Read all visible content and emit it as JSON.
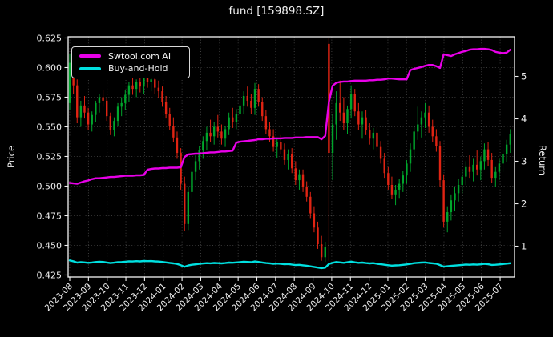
{
  "title": "fund [159898.SZ]",
  "chart_data": {
    "type": "candlestick",
    "title": "fund [159898.SZ]",
    "ylabel": "Price",
    "y2label": "Return",
    "grid": true,
    "legend_position": "upper-left",
    "price_ylim": [
      0.4233,
      0.626
    ],
    "return_ylim": [
      0.274,
      5.934
    ],
    "price_ticks": [
      0.625,
      0.6,
      0.575,
      0.55,
      0.525,
      0.5,
      0.475,
      0.45,
      0.425
    ],
    "return_ticks": [
      5,
      4,
      3,
      2,
      1
    ],
    "x_tick_labels": [
      "2023-08",
      "2023-09",
      "2023-10",
      "2023-11",
      "2023-12",
      "2024-01",
      "2024-02",
      "2024-03",
      "2024-04",
      "2024-05",
      "2024-06",
      "2024-07",
      "2024-08",
      "2024-09",
      "2024-10",
      "2024-11",
      "2024-12",
      "2025-01",
      "2025-02",
      "2025-03",
      "2025-04",
      "2025-05",
      "2025-06",
      "2025-07"
    ],
    "colors": {
      "up": "#00a62c",
      "down": "#e02413",
      "ai": "#e800e8",
      "bh": "#00e0e0",
      "background": "#000000",
      "foreground": "#f0f0f0"
    },
    "candles_ohlc": [
      [
        0.57,
        0.612,
        0.564,
        0.604
      ],
      [
        0.604,
        0.617,
        0.578,
        0.585
      ],
      [
        0.585,
        0.59,
        0.553,
        0.558
      ],
      [
        0.558,
        0.572,
        0.55,
        0.568
      ],
      [
        0.568,
        0.576,
        0.557,
        0.562
      ],
      [
        0.562,
        0.566,
        0.547,
        0.552
      ],
      [
        0.552,
        0.563,
        0.546,
        0.56
      ],
      [
        0.56,
        0.572,
        0.554,
        0.57
      ],
      [
        0.57,
        0.578,
        0.562,
        0.575
      ],
      [
        0.575,
        0.581,
        0.567,
        0.572
      ],
      [
        0.572,
        0.574,
        0.555,
        0.559
      ],
      [
        0.559,
        0.562,
        0.543,
        0.547
      ],
      [
        0.547,
        0.558,
        0.542,
        0.555
      ],
      [
        0.555,
        0.57,
        0.551,
        0.567
      ],
      [
        0.567,
        0.575,
        0.559,
        0.57
      ],
      [
        0.57,
        0.581,
        0.564,
        0.577
      ],
      [
        0.577,
        0.588,
        0.571,
        0.585
      ],
      [
        0.585,
        0.592,
        0.577,
        0.582
      ],
      [
        0.582,
        0.59,
        0.575,
        0.588
      ],
      [
        0.588,
        0.594,
        0.579,
        0.584
      ],
      [
        0.584,
        0.596,
        0.578,
        0.592
      ],
      [
        0.592,
        0.597,
        0.583,
        0.588
      ],
      [
        0.588,
        0.595,
        0.58,
        0.59
      ],
      [
        0.59,
        0.593,
        0.578,
        0.583
      ],
      [
        0.583,
        0.589,
        0.574,
        0.58
      ],
      [
        0.58,
        0.584,
        0.567,
        0.571
      ],
      [
        0.571,
        0.576,
        0.557,
        0.561
      ],
      [
        0.561,
        0.566,
        0.547,
        0.551
      ],
      [
        0.551,
        0.558,
        0.537,
        0.541
      ],
      [
        0.541,
        0.546,
        0.523,
        0.528
      ],
      [
        0.528,
        0.532,
        0.497,
        0.502
      ],
      [
        0.502,
        0.508,
        0.462,
        0.468
      ],
      [
        0.468,
        0.499,
        0.463,
        0.495
      ],
      [
        0.495,
        0.516,
        0.49,
        0.512
      ],
      [
        0.512,
        0.526,
        0.505,
        0.521
      ],
      [
        0.521,
        0.534,
        0.514,
        0.53
      ],
      [
        0.53,
        0.542,
        0.523,
        0.538
      ],
      [
        0.538,
        0.55,
        0.53,
        0.545
      ],
      [
        0.545,
        0.556,
        0.537,
        0.542
      ],
      [
        0.542,
        0.554,
        0.535,
        0.55
      ],
      [
        0.55,
        0.56,
        0.541,
        0.546
      ],
      [
        0.546,
        0.552,
        0.535,
        0.54
      ],
      [
        0.54,
        0.551,
        0.533,
        0.548
      ],
      [
        0.548,
        0.562,
        0.543,
        0.558
      ],
      [
        0.558,
        0.566,
        0.549,
        0.554
      ],
      [
        0.554,
        0.565,
        0.548,
        0.561
      ],
      [
        0.561,
        0.572,
        0.554,
        0.568
      ],
      [
        0.568,
        0.58,
        0.561,
        0.576
      ],
      [
        0.576,
        0.584,
        0.567,
        0.572
      ],
      [
        0.572,
        0.578,
        0.561,
        0.566
      ],
      [
        0.566,
        0.587,
        0.56,
        0.582
      ],
      [
        0.582,
        0.586,
        0.567,
        0.571
      ],
      [
        0.571,
        0.575,
        0.555,
        0.559
      ],
      [
        0.559,
        0.564,
        0.544,
        0.548
      ],
      [
        0.548,
        0.554,
        0.537,
        0.542
      ],
      [
        0.542,
        0.548,
        0.529,
        0.533
      ],
      [
        0.533,
        0.541,
        0.524,
        0.537
      ],
      [
        0.537,
        0.543,
        0.527,
        0.531
      ],
      [
        0.531,
        0.536,
        0.518,
        0.522
      ],
      [
        0.522,
        0.531,
        0.514,
        0.527
      ],
      [
        0.527,
        0.532,
        0.511,
        0.515
      ],
      [
        0.515,
        0.521,
        0.501,
        0.505
      ],
      [
        0.505,
        0.514,
        0.497,
        0.51
      ],
      [
        0.51,
        0.514,
        0.495,
        0.499
      ],
      [
        0.499,
        0.504,
        0.487,
        0.491
      ],
      [
        0.491,
        0.495,
        0.473,
        0.477
      ],
      [
        0.477,
        0.483,
        0.461,
        0.465
      ],
      [
        0.465,
        0.47,
        0.447,
        0.451
      ],
      [
        0.451,
        0.458,
        0.437,
        0.44
      ],
      [
        0.44,
        0.453,
        0.436,
        0.449
      ],
      [
        0.62,
        0.625,
        0.437,
        0.528
      ],
      [
        0.528,
        0.561,
        0.505,
        0.552
      ],
      [
        0.552,
        0.58,
        0.539,
        0.57
      ],
      [
        0.57,
        0.589,
        0.555,
        0.562
      ],
      [
        0.562,
        0.575,
        0.547,
        0.553
      ],
      [
        0.553,
        0.568,
        0.544,
        0.565
      ],
      [
        0.565,
        0.585,
        0.557,
        0.578
      ],
      [
        0.578,
        0.582,
        0.559,
        0.563
      ],
      [
        0.563,
        0.57,
        0.547,
        0.552
      ],
      [
        0.552,
        0.563,
        0.54,
        0.558
      ],
      [
        0.558,
        0.564,
        0.543,
        0.547
      ],
      [
        0.547,
        0.553,
        0.535,
        0.54
      ],
      [
        0.54,
        0.549,
        0.531,
        0.545
      ],
      [
        0.545,
        0.55,
        0.529,
        0.533
      ],
      [
        0.533,
        0.538,
        0.519,
        0.523
      ],
      [
        0.523,
        0.528,
        0.507,
        0.511
      ],
      [
        0.511,
        0.516,
        0.497,
        0.501
      ],
      [
        0.501,
        0.508,
        0.489,
        0.493
      ],
      [
        0.493,
        0.501,
        0.484,
        0.497
      ],
      [
        0.497,
        0.506,
        0.49,
        0.502
      ],
      [
        0.502,
        0.513,
        0.495,
        0.509
      ],
      [
        0.509,
        0.522,
        0.502,
        0.519
      ],
      [
        0.519,
        0.536,
        0.512,
        0.531
      ],
      [
        0.531,
        0.551,
        0.524,
        0.546
      ],
      [
        0.546,
        0.567,
        0.539,
        0.552
      ],
      [
        0.552,
        0.563,
        0.541,
        0.558
      ],
      [
        0.558,
        0.57,
        0.549,
        0.562
      ],
      [
        0.562,
        0.568,
        0.545,
        0.55
      ],
      [
        0.55,
        0.556,
        0.537,
        0.542
      ],
      [
        0.542,
        0.548,
        0.529,
        0.534
      ],
      [
        0.534,
        0.538,
        0.499,
        0.505
      ],
      [
        0.505,
        0.51,
        0.465,
        0.47
      ],
      [
        0.47,
        0.483,
        0.461,
        0.478
      ],
      [
        0.478,
        0.493,
        0.471,
        0.488
      ],
      [
        0.488,
        0.499,
        0.479,
        0.494
      ],
      [
        0.494,
        0.506,
        0.487,
        0.501
      ],
      [
        0.501,
        0.513,
        0.494,
        0.508
      ],
      [
        0.508,
        0.521,
        0.501,
        0.516
      ],
      [
        0.516,
        0.526,
        0.507,
        0.512
      ],
      [
        0.512,
        0.523,
        0.504,
        0.518
      ],
      [
        0.518,
        0.53,
        0.509,
        0.514
      ],
      [
        0.514,
        0.525,
        0.505,
        0.521
      ],
      [
        0.521,
        0.536,
        0.514,
        0.531
      ],
      [
        0.531,
        0.537,
        0.517,
        0.522
      ],
      [
        0.522,
        0.528,
        0.503,
        0.507
      ],
      [
        0.507,
        0.516,
        0.499,
        0.512
      ],
      [
        0.512,
        0.523,
        0.505,
        0.519
      ],
      [
        0.519,
        0.531,
        0.512,
        0.527
      ],
      [
        0.527,
        0.539,
        0.52,
        0.535
      ],
      [
        0.535,
        0.548,
        0.528,
        0.544
      ]
    ],
    "series": [
      {
        "name": "Swtool.com AI",
        "axis": "return",
        "color": "#e800e8",
        "values": [
          2.49,
          2.48,
          2.47,
          2.5,
          2.53,
          2.55,
          2.58,
          2.6,
          2.6,
          2.61,
          2.62,
          2.63,
          2.63,
          2.64,
          2.65,
          2.66,
          2.66,
          2.66,
          2.67,
          2.67,
          2.68,
          2.8,
          2.82,
          2.83,
          2.83,
          2.84,
          2.84,
          2.85,
          2.85,
          2.85,
          2.86,
          3.1,
          3.16,
          3.17,
          3.18,
          3.18,
          3.19,
          3.2,
          3.21,
          3.21,
          3.22,
          3.23,
          3.23,
          3.24,
          3.25,
          3.44,
          3.46,
          3.47,
          3.48,
          3.49,
          3.5,
          3.52,
          3.52,
          3.53,
          3.53,
          3.54,
          3.54,
          3.54,
          3.55,
          3.55,
          3.55,
          3.56,
          3.56,
          3.56,
          3.57,
          3.57,
          3.57,
          3.57,
          3.52,
          3.6,
          4.4,
          4.78,
          4.85,
          4.87,
          4.88,
          4.88,
          4.89,
          4.9,
          4.9,
          4.9,
          4.9,
          4.91,
          4.91,
          4.92,
          4.92,
          4.93,
          4.95,
          4.95,
          4.94,
          4.93,
          4.93,
          4.93,
          5.15,
          5.18,
          5.2,
          5.22,
          5.25,
          5.27,
          5.27,
          5.24,
          5.2,
          5.52,
          5.5,
          5.48,
          5.52,
          5.55,
          5.58,
          5.6,
          5.63,
          5.64,
          5.64,
          5.65,
          5.65,
          5.64,
          5.62,
          5.58,
          5.56,
          5.55,
          5.56,
          5.63
        ]
      },
      {
        "name": "Buy-and-Hold",
        "axis": "return",
        "color": "#00e0e0",
        "values": [
          0.664,
          0.644,
          0.614,
          0.625,
          0.618,
          0.607,
          0.616,
          0.627,
          0.633,
          0.629,
          0.615,
          0.602,
          0.611,
          0.624,
          0.627,
          0.635,
          0.644,
          0.64,
          0.647,
          0.642,
          0.651,
          0.647,
          0.649,
          0.641,
          0.638,
          0.628,
          0.617,
          0.606,
          0.595,
          0.581,
          0.552,
          0.515,
          0.545,
          0.563,
          0.573,
          0.583,
          0.592,
          0.6,
          0.596,
          0.605,
          0.601,
          0.594,
          0.603,
          0.614,
          0.609,
          0.617,
          0.625,
          0.634,
          0.629,
          0.623,
          0.64,
          0.628,
          0.615,
          0.603,
          0.596,
          0.586,
          0.591,
          0.584,
          0.574,
          0.58,
          0.567,
          0.556,
          0.561,
          0.549,
          0.54,
          0.525,
          0.512,
          0.496,
          0.484,
          0.494,
          0.581,
          0.607,
          0.627,
          0.618,
          0.608,
          0.622,
          0.636,
          0.619,
          0.607,
          0.614,
          0.602,
          0.594,
          0.6,
          0.586,
          0.575,
          0.562,
          0.551,
          0.542,
          0.547,
          0.552,
          0.56,
          0.571,
          0.584,
          0.601,
          0.607,
          0.614,
          0.618,
          0.605,
          0.596,
          0.587,
          0.556,
          0.517,
          0.526,
          0.537,
          0.543,
          0.551,
          0.559,
          0.568,
          0.563,
          0.57,
          0.565,
          0.573,
          0.584,
          0.574,
          0.558,
          0.563,
          0.571,
          0.58,
          0.589,
          0.598
        ]
      }
    ]
  }
}
